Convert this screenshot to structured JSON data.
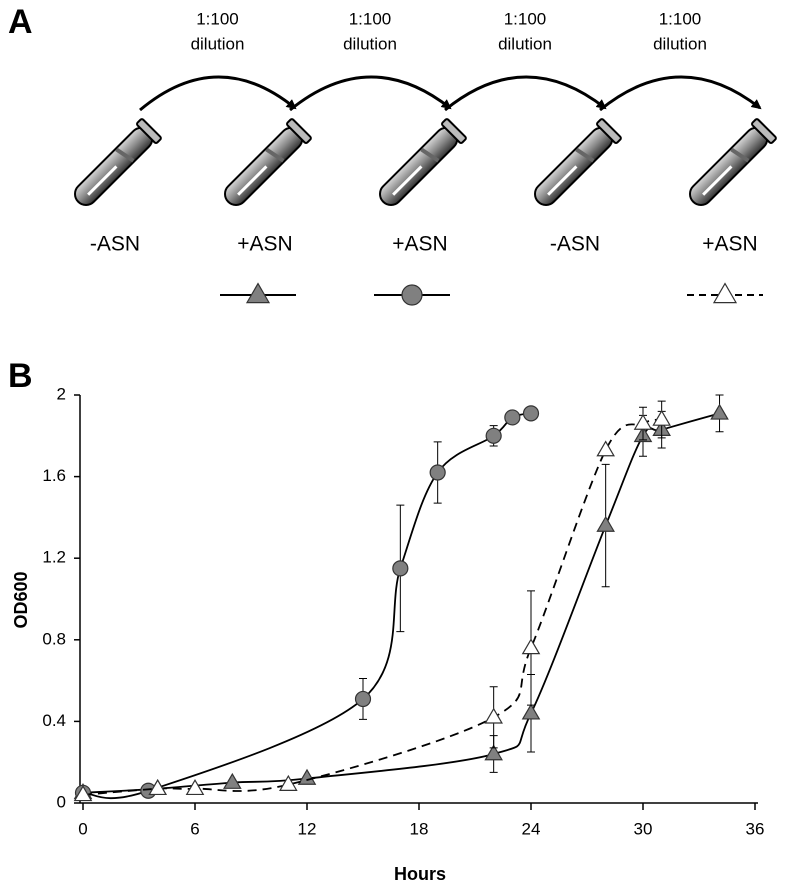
{
  "panel_a": {
    "label": "A",
    "dilutions": [
      [
        "1:100",
        "dilution"
      ],
      [
        "1:100",
        "dilution"
      ],
      [
        "1:100",
        "dilution"
      ],
      [
        "1:100",
        "dilution"
      ]
    ],
    "conditions": [
      "-ASN",
      "+ASN",
      "+ASN",
      "-ASN",
      "+ASN"
    ]
  },
  "chart_data": {
    "type": "line",
    "panel_label": "B",
    "x_label": "Hours",
    "y_label": "OD600",
    "xlim": [
      0,
      36
    ],
    "xticks": [
      0,
      6,
      12,
      18,
      24,
      30,
      36
    ],
    "ylim": [
      0,
      2
    ],
    "yticks": [
      0,
      0.4,
      0.8,
      1.2,
      1.6,
      2
    ],
    "series": [
      {
        "color": "#808080",
        "marker": "triangle",
        "dash": false,
        "x": [
          0,
          4,
          8,
          12,
          22,
          24,
          28,
          30,
          31,
          34.1
        ],
        "values": [
          0.05,
          0.07,
          0.1,
          0.12,
          0.24,
          0.44,
          1.36,
          1.8,
          1.83,
          1.91
        ],
        "errors": [
          null,
          null,
          null,
          null,
          0.09,
          0.19,
          0.3,
          0.1,
          0.09,
          0.09
        ]
      },
      {
        "color": "#808080",
        "marker": "circle",
        "dash": false,
        "x": [
          0,
          3.5,
          15,
          17,
          19,
          22,
          23,
          24
        ],
        "values": [
          0.05,
          0.06,
          0.51,
          1.15,
          1.62,
          1.8,
          1.89,
          1.91
        ],
        "errors": [
          null,
          null,
          0.1,
          0.31,
          0.15,
          0.05,
          null,
          null
        ]
      },
      {
        "color": "#ffffff",
        "marker": "triangle",
        "dash": true,
        "x": [
          0,
          4,
          6,
          11,
          22,
          24,
          28,
          30,
          31
        ],
        "values": [
          0.04,
          0.07,
          0.07,
          0.09,
          0.42,
          0.76,
          1.73,
          1.86,
          1.88
        ],
        "errors": [
          null,
          null,
          null,
          null,
          0.15,
          0.28,
          null,
          0.08,
          0.09
        ]
      }
    ]
  }
}
